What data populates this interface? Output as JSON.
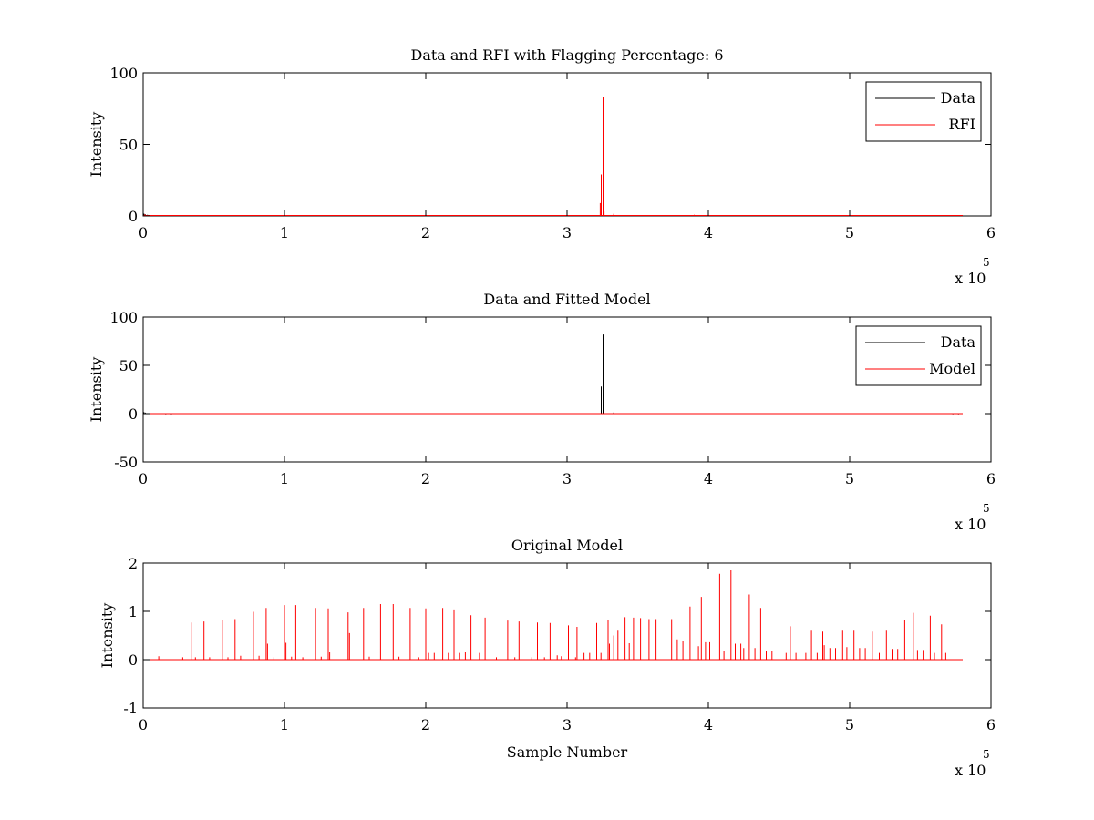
{
  "chart_data": [
    {
      "type": "line",
      "title": "Data and RFI with Flagging Percentage: 6",
      "ylabel": "Intensity",
      "xlabel": "",
      "xlim": [
        0,
        600000
      ],
      "ylim": [
        0,
        100
      ],
      "xticks": [
        0,
        1,
        2,
        3,
        4,
        5,
        6
      ],
      "yticks": [
        0,
        50,
        100
      ],
      "xtick_labels": [
        "0",
        "1",
        "2",
        "3",
        "4",
        "5",
        "6"
      ],
      "ytick_labels": [
        "0",
        "50",
        "100"
      ],
      "x_multiplier_label": "x 10",
      "x_multiplier_exponent": "5",
      "legend_position": "top-right",
      "x_data_end": 580000,
      "series": [
        {
          "name": "Data",
          "color": "#000000",
          "baseline": 0.3,
          "spikes": [
            [
              500,
              1.6
            ],
            [
              1500,
              1.2
            ],
            [
              3000,
              0.8
            ],
            [
              325500,
              0.5
            ]
          ]
        },
        {
          "name": "RFI",
          "color": "#ff0000",
          "baseline": 0.3,
          "spikes": [
            [
              1200,
              1.2
            ],
            [
              323500,
              9
            ],
            [
              324200,
              29
            ],
            [
              325500,
              83
            ],
            [
              326200,
              3
            ],
            [
              333000,
              1.5
            ],
            [
              390000,
              0.8
            ]
          ]
        }
      ]
    },
    {
      "type": "line",
      "title": "Data and Fitted Model",
      "ylabel": "Intensity",
      "xlabel": "",
      "xlim": [
        0,
        600000
      ],
      "ylim": [
        -50,
        100
      ],
      "xticks": [
        0,
        1,
        2,
        3,
        4,
        5,
        6
      ],
      "yticks": [
        -50,
        0,
        50,
        100
      ],
      "xtick_labels": [
        "0",
        "1",
        "2",
        "3",
        "4",
        "5",
        "6"
      ],
      "ytick_labels": [
        "-50",
        "0",
        "50",
        "100"
      ],
      "x_multiplier_label": "x 10",
      "x_multiplier_exponent": "5",
      "legend_position": "top-right",
      "x_data_end": 580000,
      "series": [
        {
          "name": "Data",
          "color": "#000000",
          "baseline": 0,
          "spikes": [
            [
              500,
              1.5
            ],
            [
              1500,
              1.0
            ],
            [
              16000,
              -0.8
            ],
            [
              20000,
              -0.8
            ],
            [
              324200,
              28
            ],
            [
              325500,
              82
            ],
            [
              333000,
              1.2
            ],
            [
              573000,
              -0.8
            ],
            [
              577000,
              -0.8
            ]
          ]
        },
        {
          "name": "Model",
          "color": "#ff0000",
          "baseline": 0,
          "spikes": []
        }
      ]
    },
    {
      "type": "line",
      "title": "Original Model",
      "ylabel": "Intensity",
      "xlabel": "Sample Number",
      "xlim": [
        0,
        600000
      ],
      "ylim": [
        -1,
        2
      ],
      "xticks": [
        0,
        1,
        2,
        3,
        4,
        5,
        6
      ],
      "yticks": [
        -1,
        0,
        1,
        2
      ],
      "xtick_labels": [
        "0",
        "1",
        "2",
        "3",
        "4",
        "5",
        "6"
      ],
      "ytick_labels": [
        "-1",
        "0",
        "1",
        "2"
      ],
      "x_multiplier_label": "x 10",
      "x_multiplier_exponent": "5",
      "legend_position": "none",
      "x_data_end": 580000,
      "series": [
        {
          "name": "",
          "color": "#ff0000",
          "baseline": 0,
          "spikes": [
            [
              11000,
              0.07
            ],
            [
              28000,
              0.05
            ],
            [
              34000,
              0.77
            ],
            [
              37000,
              0.05
            ],
            [
              43000,
              0.79
            ],
            [
              47000,
              0.05
            ],
            [
              56000,
              0.82
            ],
            [
              60000,
              0.05
            ],
            [
              65000,
              0.84
            ],
            [
              69000,
              0.08
            ],
            [
              78000,
              0.99
            ],
            [
              82000,
              0.08
            ],
            [
              87000,
              1.07
            ],
            [
              88000,
              0.33
            ],
            [
              92000,
              0.05
            ],
            [
              100000,
              1.13
            ],
            [
              101000,
              0.35
            ],
            [
              105000,
              0.06
            ],
            [
              108000,
              1.13
            ],
            [
              113000,
              0.05
            ],
            [
              122000,
              1.07
            ],
            [
              126000,
              0.06
            ],
            [
              131000,
              1.06
            ],
            [
              132000,
              0.15
            ],
            [
              145000,
              0.98
            ],
            [
              146000,
              0.55
            ],
            [
              156000,
              1.07
            ],
            [
              160000,
              0.06
            ],
            [
              168000,
              1.15
            ],
            [
              177000,
              1.15
            ],
            [
              181000,
              0.06
            ],
            [
              189000,
              1.07
            ],
            [
              195000,
              0.05
            ],
            [
              200000,
              1.06
            ],
            [
              202000,
              0.14
            ],
            [
              206000,
              0.14
            ],
            [
              212000,
              1.07
            ],
            [
              216000,
              0.14
            ],
            [
              220000,
              1.04
            ],
            [
              224000,
              0.14
            ],
            [
              228000,
              0.15
            ],
            [
              232000,
              0.92
            ],
            [
              238000,
              0.14
            ],
            [
              242000,
              0.87
            ],
            [
              250000,
              0.05
            ],
            [
              258000,
              0.81
            ],
            [
              263000,
              0.05
            ],
            [
              266000,
              0.79
            ],
            [
              275000,
              0.05
            ],
            [
              279000,
              0.77
            ],
            [
              284000,
              0.05
            ],
            [
              288000,
              0.76
            ],
            [
              293000,
              0.09
            ],
            [
              296000,
              0.07
            ],
            [
              301000,
              0.71
            ],
            [
              306000,
              0.05
            ],
            [
              307000,
              0.68
            ],
            [
              312000,
              0.14
            ],
            [
              316000,
              0.14
            ],
            [
              321000,
              0.76
            ],
            [
              324000,
              0.14
            ],
            [
              329000,
              0.82
            ],
            [
              330000,
              0.33
            ],
            [
              333000,
              0.5
            ],
            [
              336000,
              0.6
            ],
            [
              341000,
              0.88
            ],
            [
              344000,
              0.34
            ],
            [
              347000,
              0.87
            ],
            [
              352000,
              0.86
            ],
            [
              358000,
              0.84
            ],
            [
              363000,
              0.84
            ],
            [
              370000,
              0.84
            ],
            [
              374000,
              0.84
            ],
            [
              378000,
              0.42
            ],
            [
              382000,
              0.39
            ],
            [
              387000,
              1.1
            ],
            [
              393000,
              0.28
            ],
            [
              395000,
              1.3
            ],
            [
              398000,
              0.36
            ],
            [
              401000,
              0.36
            ],
            [
              408000,
              1.78
            ],
            [
              411000,
              0.18
            ],
            [
              416000,
              1.85
            ],
            [
              419000,
              0.33
            ],
            [
              423000,
              0.33
            ],
            [
              425000,
              0.24
            ],
            [
              429000,
              1.35
            ],
            [
              433000,
              0.24
            ],
            [
              437000,
              1.07
            ],
            [
              441000,
              0.18
            ],
            [
              445000,
              0.18
            ],
            [
              450000,
              0.77
            ],
            [
              455000,
              0.14
            ],
            [
              458000,
              0.69
            ],
            [
              462000,
              0.14
            ],
            [
              469000,
              0.14
            ],
            [
              473000,
              0.6
            ],
            [
              477000,
              0.14
            ],
            [
              481000,
              0.58
            ],
            [
              482000,
              0.3
            ],
            [
              486000,
              0.24
            ],
            [
              490000,
              0.24
            ],
            [
              495000,
              0.6
            ],
            [
              498000,
              0.26
            ],
            [
              503000,
              0.6
            ],
            [
              507000,
              0.24
            ],
            [
              511000,
              0.24
            ],
            [
              516000,
              0.58
            ],
            [
              521000,
              0.14
            ],
            [
              526000,
              0.6
            ],
            [
              530000,
              0.22
            ],
            [
              534000,
              0.22
            ],
            [
              539000,
              0.82
            ],
            [
              545000,
              0.97
            ],
            [
              548000,
              0.2
            ],
            [
              552000,
              0.2
            ],
            [
              557000,
              0.91
            ],
            [
              560000,
              0.14
            ],
            [
              565000,
              0.73
            ],
            [
              568000,
              0.14
            ]
          ]
        }
      ]
    }
  ]
}
